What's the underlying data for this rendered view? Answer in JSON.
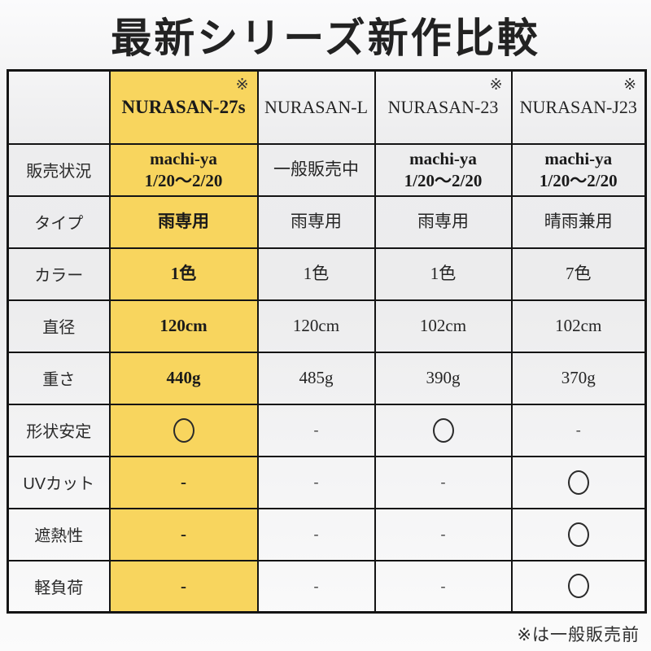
{
  "title": "最新シリーズ新作比較",
  "footnote": "※は一般販売前",
  "colors": {
    "highlight": "#f8d55e",
    "border": "#141414",
    "text": "#1c1c1c"
  },
  "table": {
    "products": [
      {
        "name": "NURASAN-27s",
        "mark": "※",
        "highlighted": true
      },
      {
        "name": "NURASAN-L",
        "mark": "",
        "highlighted": false
      },
      {
        "name": "NURASAN-23",
        "mark": "※",
        "highlighted": false
      },
      {
        "name": "NURASAN-J23",
        "mark": "※",
        "highlighted": false
      }
    ],
    "rows": [
      {
        "label": "販売状況",
        "values": [
          "machi-ya\n1/20〜2/20",
          "一般販売中",
          "machi-ya\n1/20〜2/20",
          "machi-ya\n1/20〜2/20"
        ],
        "bold": [
          true,
          false,
          true,
          true
        ]
      },
      {
        "label": "タイプ",
        "values": [
          "雨専用",
          "雨専用",
          "雨専用",
          "晴雨兼用"
        ],
        "bold": [
          true,
          false,
          false,
          false
        ]
      },
      {
        "label": "カラー",
        "values": [
          "1色",
          "1色",
          "1色",
          "7色"
        ],
        "bold": [
          true,
          false,
          false,
          false
        ]
      },
      {
        "label": "直径",
        "values": [
          "120cm",
          "120cm",
          "102cm",
          "102cm"
        ],
        "bold": [
          true,
          false,
          false,
          false
        ]
      },
      {
        "label": "重さ",
        "values": [
          "440g",
          "485g",
          "390g",
          "370g"
        ],
        "bold": [
          true,
          false,
          false,
          false
        ]
      },
      {
        "label": "形状安定",
        "values": [
          "○",
          "-",
          "○",
          "-"
        ],
        "bold": [
          true,
          false,
          false,
          false
        ]
      },
      {
        "label": "UVカット",
        "values": [
          "-",
          "-",
          "-",
          "○"
        ],
        "bold": [
          true,
          false,
          false,
          false
        ]
      },
      {
        "label": "遮熱性",
        "values": [
          "-",
          "-",
          "-",
          "○"
        ],
        "bold": [
          true,
          false,
          false,
          false
        ]
      },
      {
        "label": "軽負荷",
        "values": [
          "-",
          "-",
          "-",
          "○"
        ],
        "bold": [
          true,
          false,
          false,
          false
        ]
      }
    ]
  }
}
